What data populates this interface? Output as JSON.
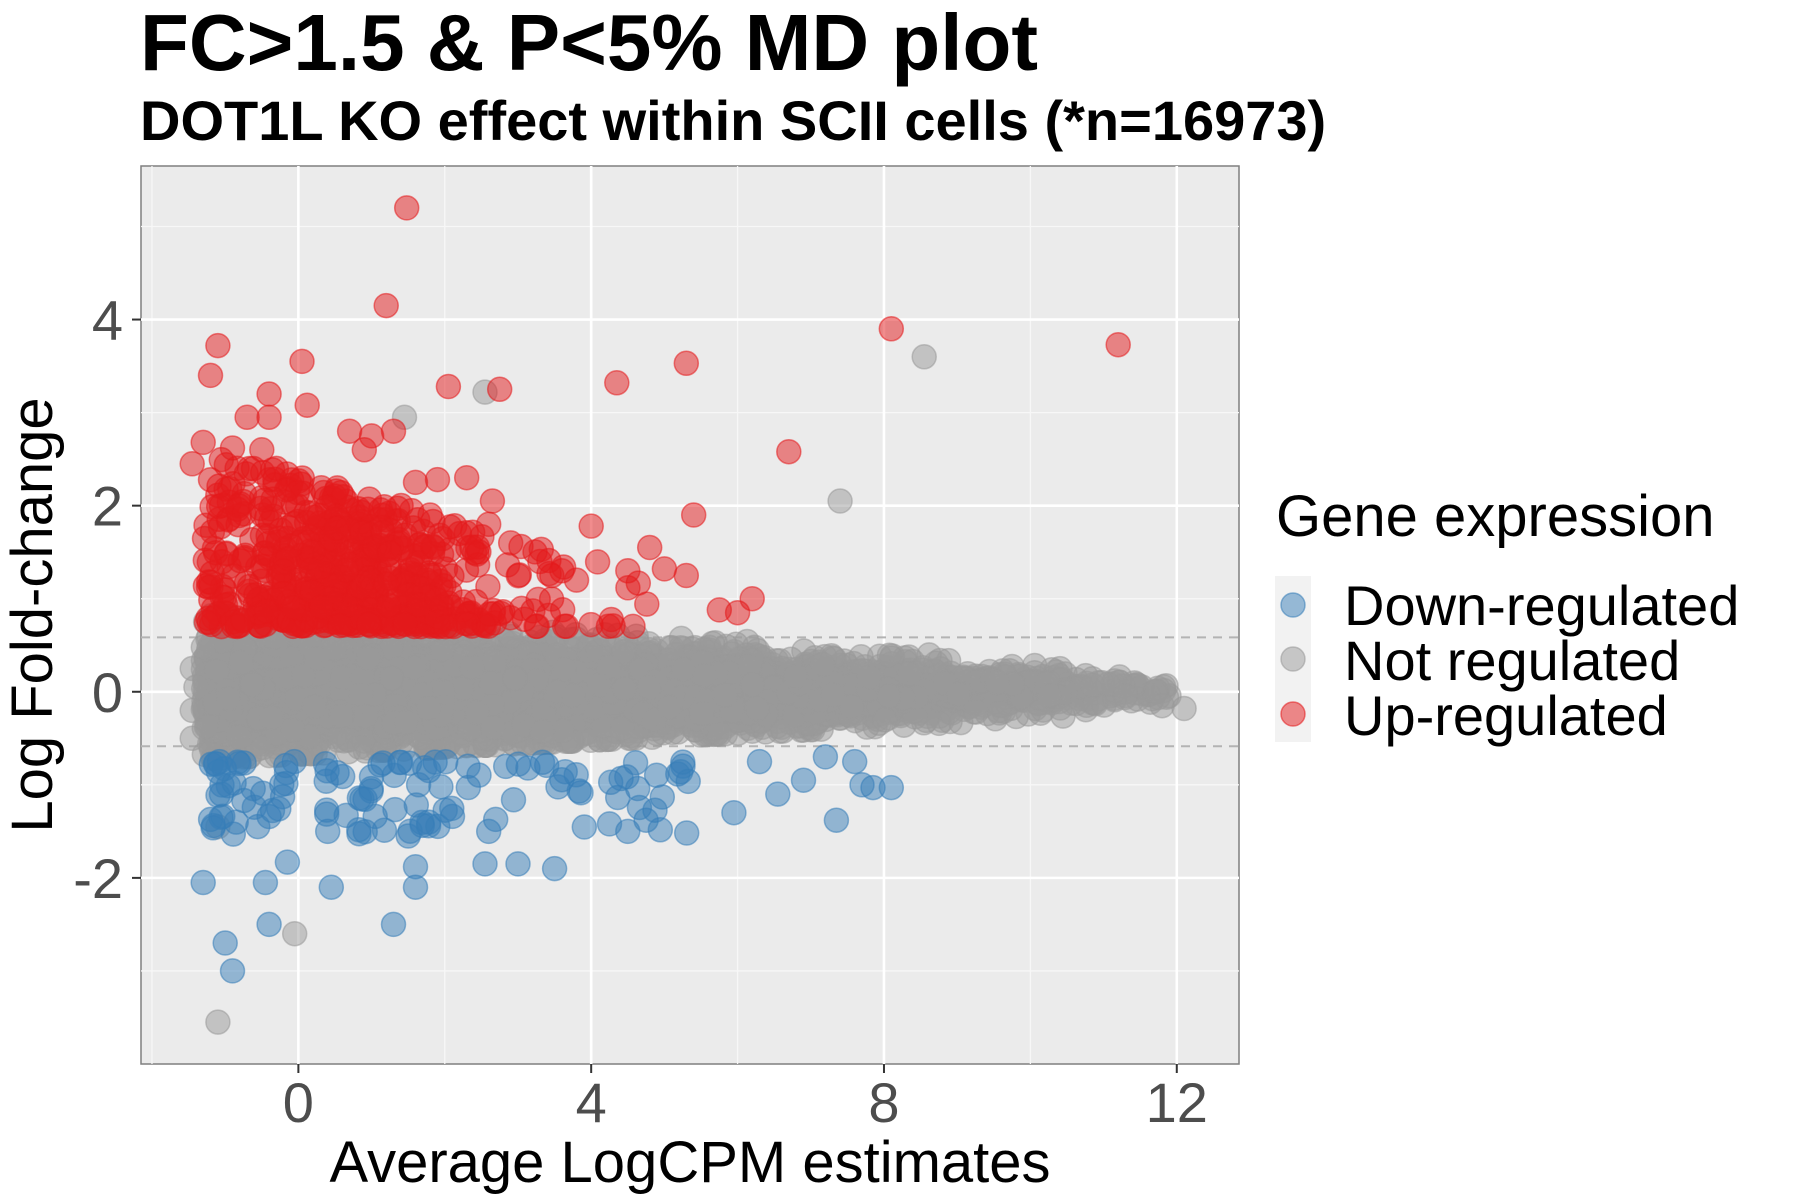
{
  "chart_data": {
    "type": "scatter",
    "title": "FC>1.5 & P<5% MD plot",
    "subtitle": "DOT1L KO effect within SCII cells (*n=16973)",
    "xlabel": "Average LogCPM estimates",
    "ylabel": "Log Fold-change",
    "xlim": [
      -2.15,
      12.85
    ],
    "ylim": [
      -4.0,
      5.65
    ],
    "xticks": [
      0,
      4,
      8,
      12
    ],
    "xtick_labels": [
      "0",
      "4",
      "8",
      "12"
    ],
    "yticks": [
      -2,
      0,
      2,
      4
    ],
    "ytick_labels": [
      "-2",
      "0",
      "2",
      "4"
    ],
    "grid": true,
    "threshold_lines": [
      0.585,
      -0.585
    ],
    "legend": {
      "title": "Gene expression",
      "placement": "right",
      "entries": [
        {
          "label": "Down-regulated",
          "color": "#377eb8"
        },
        {
          "label": "Not regulated",
          "color": "#999999"
        },
        {
          "label": "Up-regulated",
          "color": "#e41a1c"
        }
      ]
    },
    "series": [
      {
        "name": "Up-regulated",
        "color": "#e41a1c",
        "points": [
          [
            1.48,
            5.2
          ],
          [
            1.2,
            4.15
          ],
          [
            8.1,
            3.9
          ],
          [
            11.2,
            3.73
          ],
          [
            -1.1,
            3.72
          ],
          [
            0.05,
            3.55
          ],
          [
            5.3,
            3.53
          ],
          [
            -1.2,
            3.4
          ],
          [
            4.35,
            3.32
          ],
          [
            2.05,
            3.28
          ],
          [
            2.75,
            3.25
          ],
          [
            -0.4,
            3.2
          ],
          [
            0.12,
            3.08
          ],
          [
            -0.7,
            2.95
          ],
          [
            -0.4,
            2.95
          ],
          [
            1.3,
            2.8
          ],
          [
            0.7,
            2.8
          ],
          [
            1.0,
            2.75
          ],
          [
            -1.3,
            2.68
          ],
          [
            -0.9,
            2.62
          ],
          [
            -0.5,
            2.6
          ],
          [
            0.9,
            2.6
          ],
          [
            6.7,
            2.58
          ],
          [
            -1.45,
            2.45
          ],
          [
            2.3,
            2.3
          ],
          [
            -0.3,
            2.4
          ],
          [
            1.6,
            2.25
          ],
          [
            1.9,
            2.28
          ],
          [
            2.65,
            2.05
          ],
          [
            4.0,
            1.78
          ],
          [
            5.4,
            1.9
          ],
          [
            4.8,
            1.55
          ],
          [
            5.0,
            1.32
          ],
          [
            5.3,
            1.25
          ],
          [
            6.2,
            1.0
          ],
          [
            5.75,
            0.88
          ],
          [
            6.0,
            0.85
          ],
          [
            3.8,
            1.2
          ],
          [
            4.5,
            1.3
          ],
          [
            3.3,
            1.4
          ],
          [
            3.6,
            1.3
          ],
          [
            2.9,
            1.6
          ],
          [
            2.6,
            1.8
          ],
          [
            2.2,
            1.7
          ],
          [
            1.8,
            1.9
          ]
        ],
        "cloud": {
          "xmin": -1.3,
          "xmax": 4.8,
          "ymin": 0.7,
          "ymax": 2.6,
          "peak_x": 0.5,
          "count": 650
        }
      },
      {
        "name": "Not regulated",
        "color": "#999999",
        "points": [
          [
            8.55,
            3.6
          ],
          [
            2.55,
            3.22
          ],
          [
            1.45,
            2.95
          ],
          [
            7.4,
            2.05
          ],
          [
            -0.05,
            -2.6
          ],
          [
            -1.1,
            -3.55
          ],
          [
            -1.45,
            -0.5
          ],
          [
            -1.1,
            -1.45
          ],
          [
            12.1,
            -0.18
          ],
          [
            11.8,
            -0.15
          ],
          [
            -1.45,
            0.25
          ],
          [
            -1.4,
            0.05
          ],
          [
            -1.45,
            -0.2
          ]
        ],
        "cloud": {
          "xmin": -1.3,
          "xmax": 12.0,
          "ymin": -0.8,
          "ymax": 0.9,
          "count": 6000
        }
      },
      {
        "name": "Down-regulated",
        "color": "#377eb8",
        "points": [
          [
            -1.3,
            -2.05
          ],
          [
            -1.0,
            -2.7
          ],
          [
            -0.9,
            -3.0
          ],
          [
            -0.4,
            -2.5
          ],
          [
            -0.45,
            -2.05
          ],
          [
            0.45,
            -2.1
          ],
          [
            1.3,
            -2.5
          ],
          [
            1.6,
            -2.1
          ],
          [
            1.6,
            -1.88
          ],
          [
            3.0,
            -1.85
          ],
          [
            3.5,
            -1.9
          ],
          [
            2.55,
            -1.85
          ],
          [
            4.5,
            -1.5
          ],
          [
            4.75,
            -1.38
          ],
          [
            6.55,
            -1.1
          ],
          [
            6.9,
            -0.95
          ],
          [
            7.35,
            -1.38
          ],
          [
            7.7,
            -1.0
          ],
          [
            7.85,
            -1.03
          ],
          [
            8.1,
            -1.03
          ],
          [
            5.95,
            -1.3
          ],
          [
            7.6,
            -0.75
          ],
          [
            6.3,
            -0.75
          ],
          [
            7.2,
            -0.7
          ],
          [
            -0.15,
            -1.83
          ],
          [
            0.4,
            -1.5
          ],
          [
            1.5,
            -1.55
          ],
          [
            2.6,
            -1.5
          ],
          [
            -1.05,
            -1.1
          ],
          [
            -0.85,
            -1.4
          ]
        ],
        "cloud": {
          "xmin": -1.2,
          "xmax": 5.5,
          "ymin": -1.55,
          "ymax": -0.75,
          "count": 110
        }
      }
    ]
  }
}
